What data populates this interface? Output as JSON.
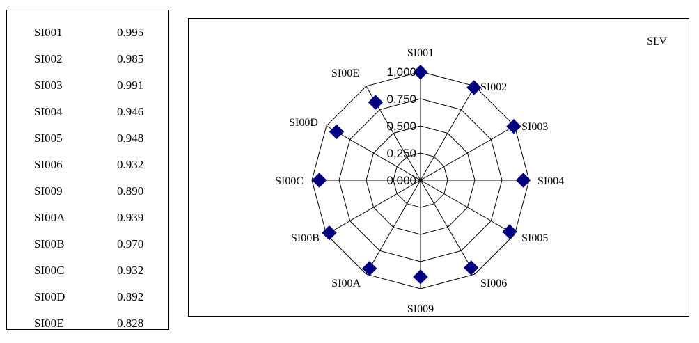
{
  "table": {
    "rows": [
      {
        "id": "SI001",
        "value": "0.995"
      },
      {
        "id": "SI002",
        "value": "0.985"
      },
      {
        "id": "SI003",
        "value": "0.991"
      },
      {
        "id": "SI004",
        "value": "0.946"
      },
      {
        "id": "SI005",
        "value": "0.948"
      },
      {
        "id": "SI006",
        "value": "0.932"
      },
      {
        "id": "SI009",
        "value": "0.890"
      },
      {
        "id": "SI00A",
        "value": "0.939"
      },
      {
        "id": "SI00B",
        "value": "0.970"
      },
      {
        "id": "SI00C",
        "value": "0.932"
      },
      {
        "id": "SI00D",
        "value": "0.892"
      },
      {
        "id": "SI00E",
        "value": "0.828"
      }
    ]
  },
  "chart_data": {
    "type": "radar",
    "title": "",
    "categories": [
      "SI001",
      "SI002",
      "SI003",
      "SI004",
      "SI005",
      "SI006",
      "SI009",
      "SI00A",
      "SI00B",
      "SI00C",
      "SI00D",
      "SI00E"
    ],
    "series": [
      {
        "name": "SLV",
        "values": [
          0.995,
          0.985,
          0.991,
          0.946,
          0.948,
          0.932,
          0.89,
          0.939,
          0.97,
          0.932,
          0.892,
          0.828
        ],
        "color": "#000080",
        "marker": "diamond"
      }
    ],
    "rlim": [
      0,
      1
    ],
    "ticks": [
      0,
      0.25,
      0.5,
      0.75,
      1.0
    ],
    "tick_labels": [
      "0,000",
      "0,250",
      "0,500",
      "0,750",
      "1,000"
    ],
    "grid": true,
    "legend": {
      "position": "top-right",
      "label": "SLV"
    }
  }
}
